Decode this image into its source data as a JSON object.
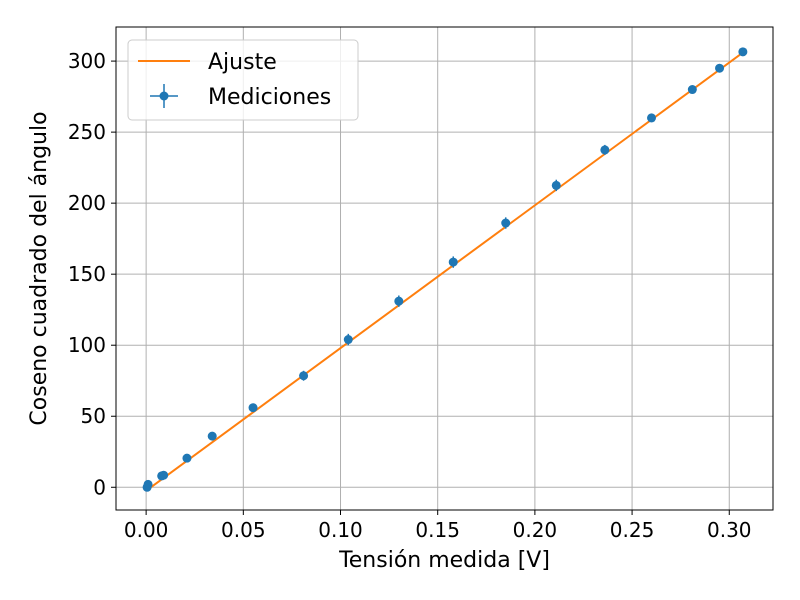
{
  "chart_data": {
    "type": "scatter",
    "xlabel": "Tensión medida [V]",
    "ylabel": "Coseno cuadrado del ángulo",
    "xlim": [
      -0.0155,
      0.3225
    ],
    "ylim": [
      -16,
      324
    ],
    "xticks": [
      0.0,
      0.05,
      0.1,
      0.15,
      0.2,
      0.25,
      0.3
    ],
    "xtick_labels": [
      "0.00",
      "0.05",
      "0.10",
      "0.15",
      "0.20",
      "0.25",
      "0.30"
    ],
    "yticks": [
      0,
      50,
      100,
      150,
      200,
      250,
      300
    ],
    "ytick_labels": [
      "0",
      "50",
      "100",
      "150",
      "200",
      "250",
      "300"
    ],
    "grid": true,
    "legend_position": "top-left",
    "series": [
      {
        "name": "Ajuste",
        "kind": "line",
        "color": "#ff7f0e",
        "x": [
          0.0005,
          0.307
        ],
        "y": [
          -2,
          306
        ]
      },
      {
        "name": "Mediciones",
        "kind": "errorbar",
        "color": "#1f77b4",
        "x": [
          0.0005,
          0.001,
          0.008,
          0.009,
          0.021,
          0.034,
          0.055,
          0.081,
          0.104,
          0.13,
          0.158,
          0.185,
          0.211,
          0.236,
          0.26,
          0.281,
          0.295,
          0.307
        ],
        "y": [
          0,
          2,
          8,
          8.5,
          20.5,
          36,
          56,
          78.5,
          104,
          131,
          158.5,
          186,
          212.5,
          237.5,
          260,
          280,
          295,
          306.5
        ],
        "yerr": [
          1,
          1,
          1,
          1,
          2,
          2.5,
          3,
          3.5,
          4,
          4,
          4,
          4,
          4,
          3.5,
          3,
          2.5,
          2,
          1.5
        ]
      }
    ]
  }
}
